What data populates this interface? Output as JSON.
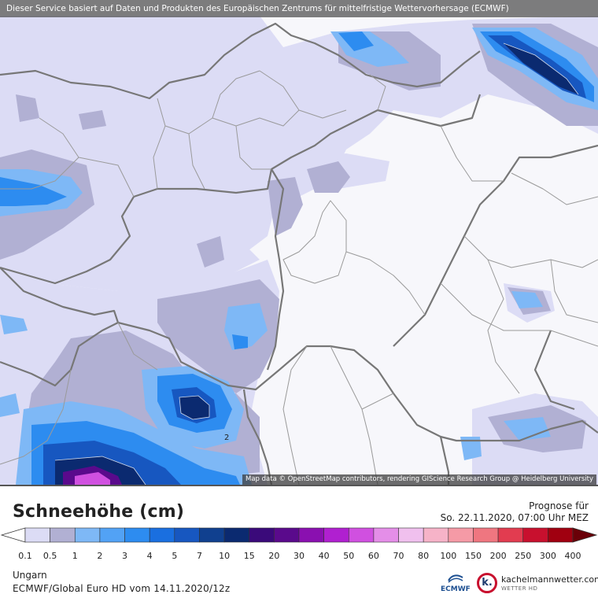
{
  "header": {
    "banner": "Dieser Service basiert auf Daten und Produkten des Europäischen Zentrums für mittelfristige Wettervorhersage (ECMWF)"
  },
  "map": {
    "attribution": "Map data © OpenStreetMap contributors, rendering GIScience Research Group @ Heidelberg University",
    "contour_label": "2"
  },
  "legend": {
    "title": "Schneehöhe (cm)",
    "forecast_label": "Prognose für",
    "forecast_time": "So. 22.11.2020, 07:00 Uhr MEZ",
    "bins": [
      {
        "label": "0.1",
        "color": "#dcdcf5"
      },
      {
        "label": "0.5",
        "color": "#b1b0d3"
      },
      {
        "label": "1",
        "color": "#7eb8f6"
      },
      {
        "label": "2",
        "color": "#52a2f5"
      },
      {
        "label": "3",
        "color": "#2d8cf0"
      },
      {
        "label": "4",
        "color": "#1a6fe0"
      },
      {
        "label": "5",
        "color": "#1757c0"
      },
      {
        "label": "7",
        "color": "#10408f"
      },
      {
        "label": "10",
        "color": "#0b2a70"
      },
      {
        "label": "15",
        "color": "#3a0a7a"
      },
      {
        "label": "20",
        "color": "#5a0a8c"
      },
      {
        "label": "30",
        "color": "#8a10b0"
      },
      {
        "label": "40",
        "color": "#b020d0"
      },
      {
        "label": "50",
        "color": "#d050e0"
      },
      {
        "label": "60",
        "color": "#e48ee8"
      },
      {
        "label": "70",
        "color": "#f0c0ee"
      },
      {
        "label": "80",
        "color": "#f6b3c8"
      },
      {
        "label": "100",
        "color": "#f59aa6"
      },
      {
        "label": "150",
        "color": "#ef7680"
      },
      {
        "label": "200",
        "color": "#e23c50"
      },
      {
        "label": "250",
        "color": "#c8102e"
      },
      {
        "label": "300",
        "color": "#a00010"
      },
      {
        "label": "400",
        "color": "#6a0008"
      }
    ]
  },
  "footer": {
    "region": "Ungarn",
    "model_run": "ECMWF/Global Euro HD vom  14.11.2020/12z",
    "ecmwf_logo_text": "ECMWF",
    "brand_name": "kachelmannwetter.com",
    "brand_sub": "WETTER HD",
    "brand_letter": "k."
  }
}
